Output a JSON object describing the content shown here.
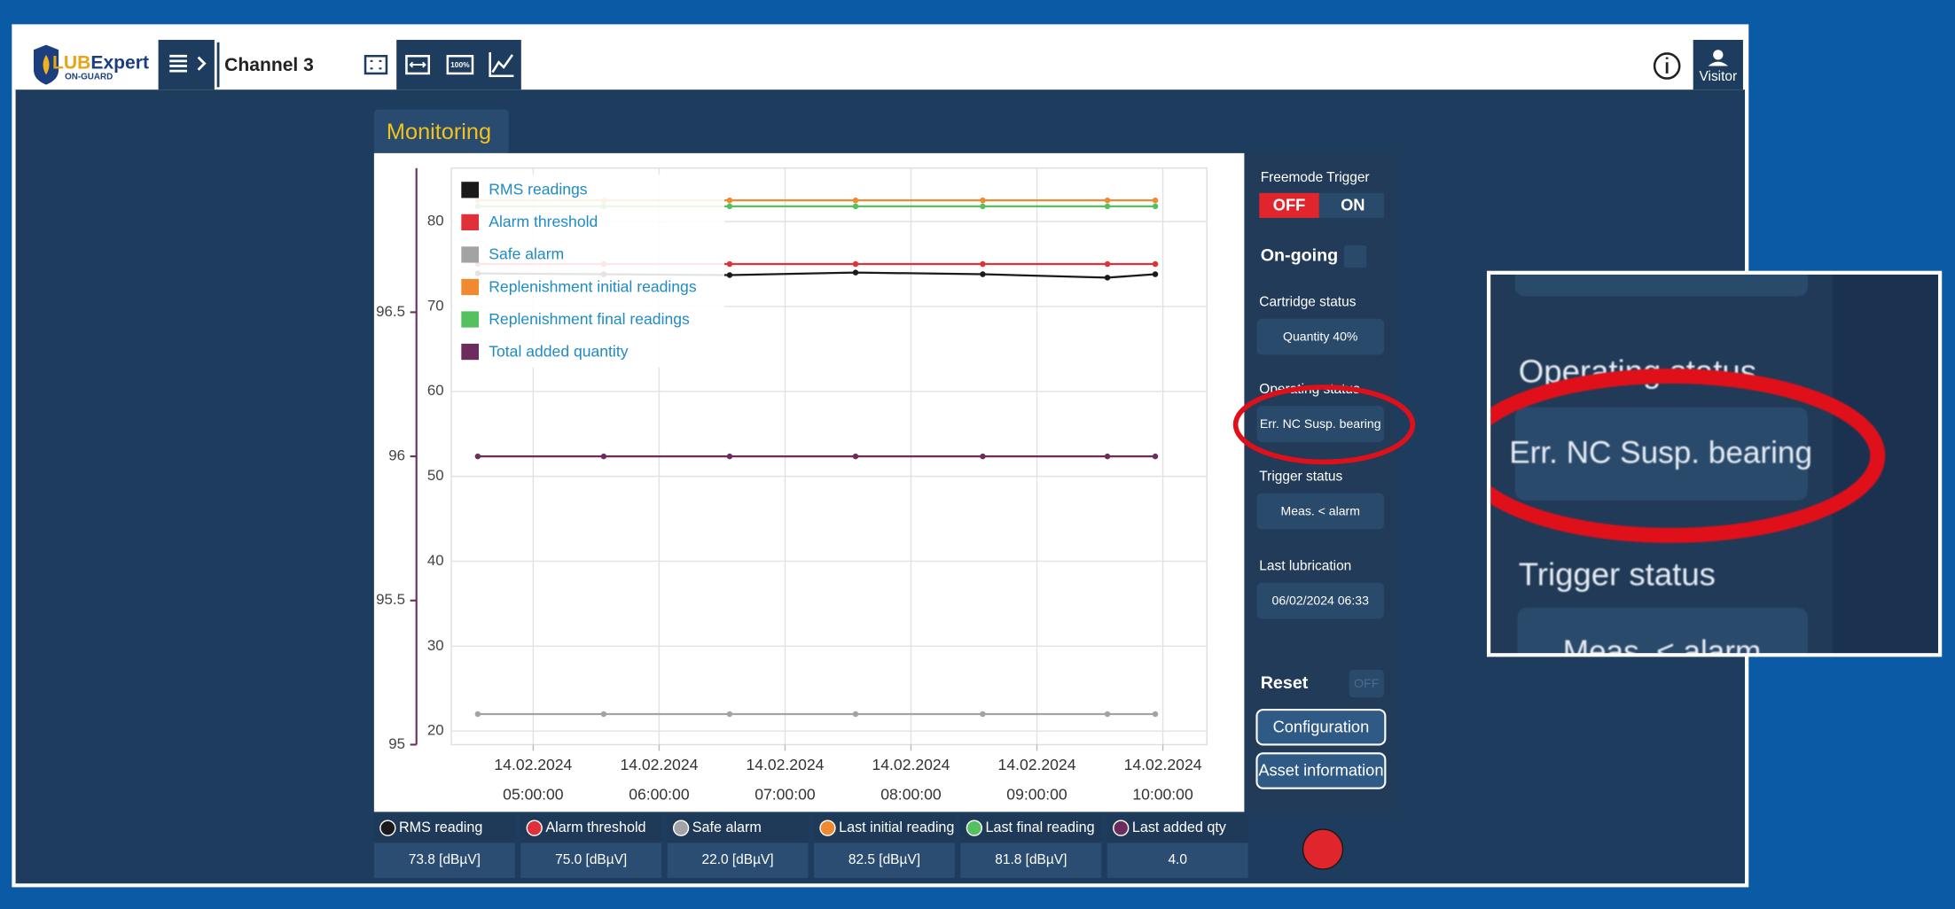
{
  "header": {
    "logo_prefix": "LUB",
    "logo_name": "Expert",
    "logo_sub": "ON-GUARD",
    "channel": "Channel 3",
    "zoom_icon": "100%",
    "user": "Visitor"
  },
  "monitoring": {
    "tab": "Monitoring",
    "chart": {
      "type": "line",
      "x": [
        4.56,
        5.56,
        6.56,
        7.56,
        8.57,
        9.56,
        9.94
      ],
      "xlim": [
        4.35,
        10.35
      ],
      "xticks": [
        {
          "value": 5,
          "label": [
            "14.02.2024",
            "05:00:00"
          ]
        },
        {
          "value": 6,
          "label": [
            "14.02.2024",
            "06:00:00"
          ]
        },
        {
          "value": 7,
          "label": [
            "14.02.2024",
            "07:00:00"
          ]
        },
        {
          "value": 8,
          "label": [
            "14.02.2024",
            "08:00:00"
          ]
        },
        {
          "value": 9,
          "label": [
            "14.02.2024",
            "09:00:00"
          ]
        },
        {
          "value": 10,
          "label": [
            "14.02.2024",
            "10:00:00"
          ]
        }
      ],
      "ylim": [
        18.4,
        86.3
      ],
      "yticks": [
        20,
        30,
        40,
        50,
        60,
        70,
        80
      ],
      "y2lim": [
        95,
        97
      ],
      "y2ticks": [
        95,
        95.5,
        96,
        96.5
      ],
      "grid": true,
      "legend": "top-left",
      "series": [
        {
          "name": "RMS readings",
          "color": "#1a1a1a",
          "values": [
            73.9,
            73.8,
            73.7,
            74.0,
            73.8,
            73.4,
            73.8
          ]
        },
        {
          "name": "Alarm threshold",
          "color": "#e0303a",
          "values": [
            75,
            75,
            75,
            75,
            75,
            75,
            75
          ]
        },
        {
          "name": "Safe alarm",
          "color": "#a3a3a3",
          "values": [
            22,
            22,
            22,
            22,
            22,
            22,
            22
          ]
        },
        {
          "name": "Replenishment initial readings",
          "color": "#f08a30",
          "values": [
            82.5,
            82.5,
            82.5,
            82.5,
            82.5,
            82.5,
            82.5
          ]
        },
        {
          "name": "Replenishment final readings",
          "color": "#55c060",
          "values": [
            81.8,
            81.8,
            81.8,
            81.8,
            81.8,
            81.8,
            81.8
          ]
        },
        {
          "name": "Total added quantity",
          "color": "#6b2d5c",
          "axis": "y2",
          "values": [
            96,
            96,
            96,
            96,
            96,
            96,
            96
          ]
        }
      ]
    }
  },
  "status_panel": {
    "freemode_trigger": {
      "label": "Freemode Trigger",
      "off": "OFF",
      "on": "ON"
    },
    "ongoing": "On-going",
    "cartridge_status": {
      "label": "Cartridge status",
      "value": "Quantity 40%"
    },
    "operating_status": {
      "label": "Operating status",
      "value": "Err. NC Susp. bearing"
    },
    "trigger_status": {
      "label": "Trigger status",
      "value": "Meas. < alarm"
    },
    "last_lubrication": {
      "label": "Last lubrication",
      "value": "06/02/2024 06:33"
    },
    "reset": {
      "label": "Reset",
      "toggle": "OFF"
    },
    "buttons": [
      "Configuration",
      "Asset information"
    ]
  },
  "readouts": [
    {
      "label": "RMS reading",
      "value": "73.8 [dBµV]"
    },
    {
      "label": "Alarm threshold",
      "value": "75.0 [dBµV]"
    },
    {
      "label": "Safe alarm",
      "value": "22.0 [dBµV]"
    },
    {
      "label": "Last initial reading",
      "value": "82.5 [dBµV]"
    },
    {
      "label": "Last final reading",
      "value": "81.8 [dBµV]"
    },
    {
      "label": "Last added qty",
      "value": "4.0"
    }
  ]
}
